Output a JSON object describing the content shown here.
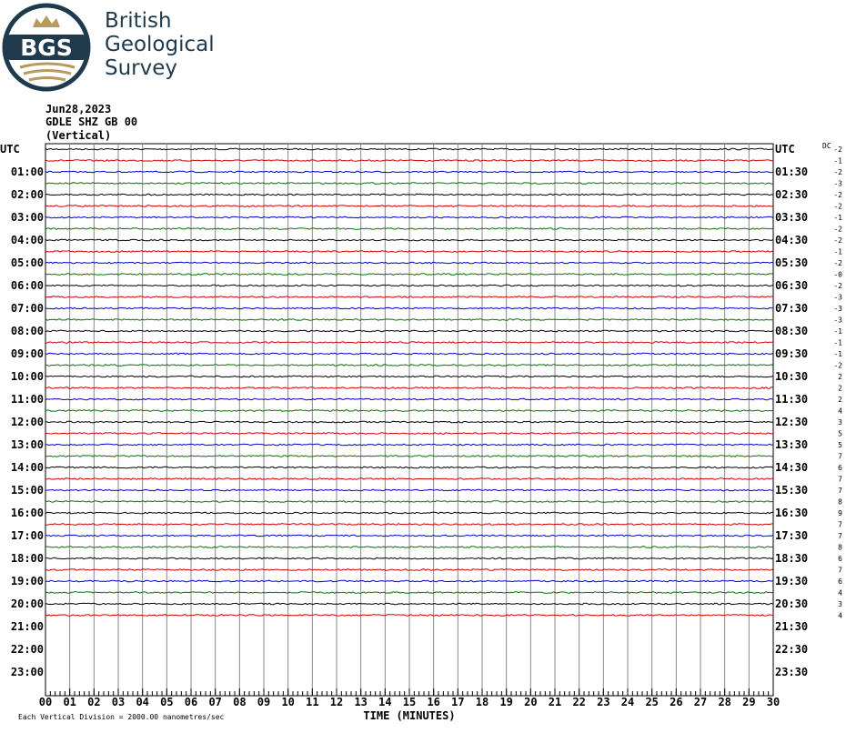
{
  "logo": {
    "mark": "BGS",
    "lines": [
      "British",
      "Geological",
      "Survey"
    ]
  },
  "header": {
    "date": "Jun28,2023",
    "station": "GDLE SHZ GB 00",
    "component": "(Vertical)"
  },
  "left_labels": [
    "UTC",
    "01:00",
    "02:00",
    "03:00",
    "04:00",
    "05:00",
    "06:00",
    "07:00",
    "08:00",
    "09:00",
    "10:00",
    "11:00",
    "12:00",
    "13:00",
    "14:00",
    "15:00",
    "16:00",
    "17:00",
    "18:00",
    "19:00",
    "20:00",
    "21:00",
    "22:00",
    "23:00"
  ],
  "right_labels": [
    "UTC",
    "01:30",
    "02:30",
    "03:30",
    "04:30",
    "05:30",
    "06:30",
    "07:30",
    "08:30",
    "09:30",
    "10:30",
    "11:30",
    "12:30",
    "13:30",
    "14:30",
    "15:30",
    "16:30",
    "17:30",
    "18:30",
    "19:30",
    "20:30",
    "21:30",
    "22:30",
    "23:30"
  ],
  "dc_title": "DC",
  "dc_offsets": [
    "-2",
    "-1",
    "-2",
    "-3",
    "-2",
    "-2",
    "-1",
    "-2",
    "-2",
    "-1",
    "-2",
    "-0",
    "-2",
    "-3",
    "-3",
    "-3",
    "-1",
    "-1",
    "-1",
    "-2",
    "2",
    "2",
    "2",
    "4",
    "3",
    "5",
    "5",
    "7",
    "6",
    "7",
    "7",
    "8",
    "9",
    "7",
    "7",
    "8",
    "6",
    "7",
    "6",
    "4",
    "3",
    "4"
  ],
  "trace_colors": [
    "#000000",
    "#cc0000",
    "#0000cc",
    "#007700"
  ],
  "x_labels": [
    "00",
    "01",
    "02",
    "03",
    "04",
    "05",
    "06",
    "07",
    "08",
    "09",
    "10",
    "11",
    "12",
    "13",
    "14",
    "15",
    "16",
    "17",
    "18",
    "19",
    "20",
    "21",
    "22",
    "23",
    "24",
    "25",
    "26",
    "27",
    "28",
    "29",
    "30"
  ],
  "x_title": "TIME (MINUTES)",
  "footer": "Each Vertical Division = 2000.00 nanometres/sec"
}
